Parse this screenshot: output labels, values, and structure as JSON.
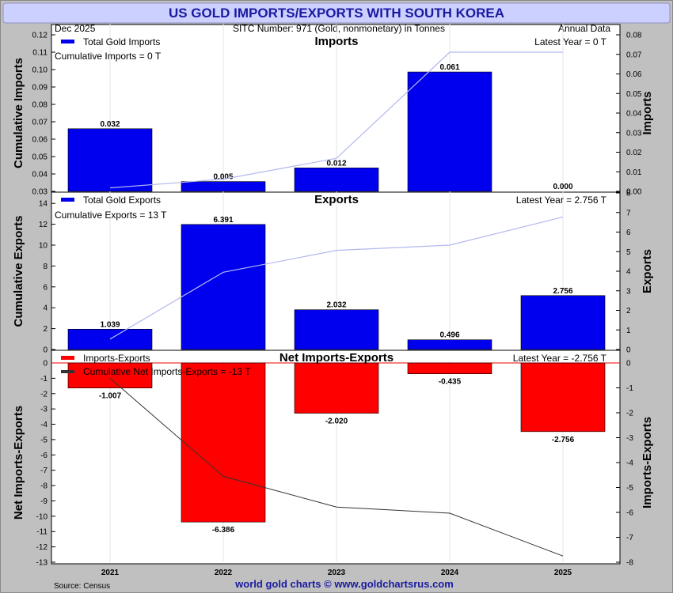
{
  "header": {
    "title": "US GOLD IMPORTS/EXPORTS WITH SOUTH KOREA",
    "date": "Dec  2025",
    "sitc": "SITC Number: 971 (Gold, nonmonetary) in Tonnes",
    "frequency": "Annual Data"
  },
  "footer": {
    "source": "Source: Census",
    "credit": "world gold charts © www.goldchartsrus.com"
  },
  "colors": {
    "title_background": "#ccd0ff",
    "title_text": "#1a1aa0",
    "frame_background": "#c0c0c0",
    "export_bar": "#0000ee",
    "net_bar": "#ff0000",
    "cumulative_line": "#b3b8f0",
    "net_cumulative_line": "#333333",
    "zero_line": "#ee0000",
    "footer_text": "#1a1aa0"
  },
  "chart_data": [
    {
      "type": "bar",
      "panel": "imports",
      "title": "Imports",
      "categories": [
        "2021",
        "2022",
        "2023",
        "2024",
        "2025"
      ],
      "legend": {
        "bars_label": "Total Gold Imports",
        "cumulative_text": "Cumulative Imports = 0 T"
      },
      "latest_text": "Latest Year = 0 T",
      "series": [
        {
          "name": "Total Gold Imports",
          "axis": "right",
          "values": [
            0.032,
            0.005,
            0.012,
            0.061,
            0.0
          ],
          "value_labels": [
            "0.032",
            "0.005",
            "0.012",
            "0.061",
            "0.000"
          ]
        },
        {
          "axis": "left",
          "values": [
            0.032,
            0.037,
            0.049,
            0.11,
            0.11
          ]
        }
      ],
      "ylabel_left": "Cumulative Imports",
      "ylabel_right": "Imports",
      "ylim_left": [
        0.03,
        0.12
      ],
      "ylim_right": [
        0,
        0.08
      ],
      "yticks_left": [
        "0.03",
        "0.04",
        "0.05",
        "0.06",
        "0.07",
        "0.08",
        "0.09",
        "0.10",
        "0.11",
        "0.12"
      ],
      "yticks_right": [
        "0.00",
        "0.01",
        "0.02",
        "0.03",
        "0.04",
        "0.05",
        "0.06",
        "0.07",
        "0.08"
      ],
      "grid": true,
      "legend_position": "top-left"
    },
    {
      "type": "bar",
      "panel": "exports",
      "title": "Exports",
      "categories": [
        "2021",
        "2022",
        "2023",
        "2024",
        "2025"
      ],
      "legend": {
        "bars_label": "Total Gold Exports",
        "cumulative_text": "Cumulative Exports = 13 T"
      },
      "latest_text": "Latest Year = 2.756 T",
      "series": [
        {
          "name": "Total Gold Exports",
          "axis": "right",
          "values": [
            1.039,
            6.391,
            2.032,
            0.496,
            2.756
          ],
          "value_labels": [
            "1.039",
            "6.391",
            "2.032",
            "0.496",
            "2.756"
          ]
        },
        {
          "axis": "left",
          "values": [
            1.0,
            7.4,
            9.5,
            10.0,
            12.7
          ]
        }
      ],
      "ylabel_left": "Cumulative Exports",
      "ylabel_right": "Exports",
      "ylim_left": [
        0,
        15
      ],
      "ylim_right": [
        0,
        8
      ],
      "yticks_left": [
        "0",
        "2",
        "4",
        "6",
        "8",
        "10",
        "12",
        "14"
      ],
      "yticks_right": [
        "0",
        "1",
        "2",
        "3",
        "4",
        "5",
        "6",
        "7",
        "8"
      ],
      "grid": true,
      "legend_position": "top-left"
    },
    {
      "type": "bar",
      "panel": "net",
      "title": "Net Imports-Exports",
      "categories": [
        "2021",
        "2022",
        "2023",
        "2024",
        "2025"
      ],
      "legend": {
        "bars_label": "Imports-Exports",
        "line_label": "Cumulative Net Imports-Exports = -13 T"
      },
      "latest_text": "Latest Year = -2.756 T",
      "series": [
        {
          "name": "Imports-Exports",
          "axis": "right",
          "values": [
            -1.007,
            -6.386,
            -2.02,
            -0.435,
            -2.756
          ],
          "value_labels": [
            "-1.007",
            "-6.386",
            "-2.020",
            "-0.435",
            "-2.756"
          ]
        },
        {
          "name": "Cumulative Net Imports-Exports",
          "axis": "left",
          "values": [
            -1.0,
            -7.4,
            -9.4,
            -9.8,
            -12.6
          ]
        }
      ],
      "ylabel_left": "Net Imports-Exports",
      "ylabel_right": "Imports-Exports",
      "ylim_left": [
        -13,
        0
      ],
      "ylim_right": [
        -8,
        0
      ],
      "yticks_left": [
        "0",
        "-1",
        "-2",
        "-3",
        "-4",
        "-5",
        "-6",
        "-7",
        "-8",
        "-9",
        "-10",
        "-11",
        "-12",
        "-13"
      ],
      "yticks_right": [
        "0",
        "-1",
        "-2",
        "-3",
        "-4",
        "-5",
        "-6",
        "-7",
        "-8"
      ],
      "grid": true,
      "legend_position": "top-left"
    }
  ]
}
